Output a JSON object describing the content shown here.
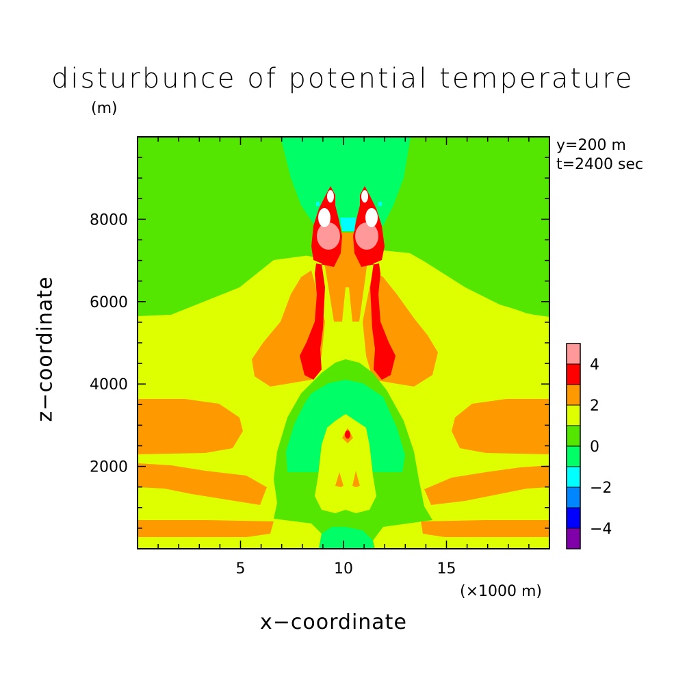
{
  "chart_data": {
    "type": "heatmap",
    "title": "disturbunce of potential temperature",
    "y_unit_label": "(m)",
    "xlabel": "x−coordinate",
    "ylabel": "z−coordinate",
    "x_unit_label": "(×1000 m)",
    "annotations": [
      "y=200 m",
      "t=2400 sec"
    ],
    "xlim": [
      0,
      20
    ],
    "ylim": [
      0,
      10000
    ],
    "x_ticks": [
      5,
      10,
      15
    ],
    "x_tick_labels": [
      "5",
      "10",
      "15"
    ],
    "y_ticks": [
      2000,
      4000,
      6000,
      8000
    ],
    "y_tick_labels": [
      "2000",
      "4000",
      "6000",
      "8000"
    ],
    "colorbar": {
      "levels": [
        -5,
        -4,
        -3,
        -2,
        -1,
        0,
        1,
        2,
        3,
        4,
        5
      ],
      "tick_labels": [
        "−4",
        "−2",
        "0",
        "2",
        "4"
      ],
      "tick_values": [
        -4,
        -2,
        0,
        2,
        4
      ],
      "colors": [
        "#7f00a8",
        "#0000ff",
        "#0087ff",
        "#00ffff",
        "#00ff66",
        "#55e600",
        "#ddff00",
        "#ff9900",
        "#ff0000",
        "#ff9999"
      ]
    },
    "regions": [
      {
        "level": "0 to 1",
        "color": "#55e600",
        "description": "background upper layer and x 0–3 and 17–20 above ~5700 m"
      },
      {
        "level": "-1 to 0",
        "color": "#00ff66",
        "description": "central column above ~8000 m and mid-level center 2000–4200 m"
      },
      {
        "level": "-2 to -1",
        "color": "#00ffff",
        "description": "small patches near top of thermals"
      },
      {
        "level": "1 to 2",
        "color": "#ddff00",
        "description": "broad middle layer"
      },
      {
        "level": "2 to 3",
        "color": "#ff9900",
        "description": "wing-shaped lobes and horizontal bands near surface"
      },
      {
        "level": "3 to 4",
        "color": "#ff0000",
        "description": "twin thermal plumes 4200–8800 m"
      },
      {
        "level": "4 to 5",
        "color": "#ff9999",
        "description": "plume heads near 7200 m"
      },
      {
        "level": ">5",
        "color": "#ffffff",
        "description": "plume cores near 8000 m"
      }
    ]
  }
}
